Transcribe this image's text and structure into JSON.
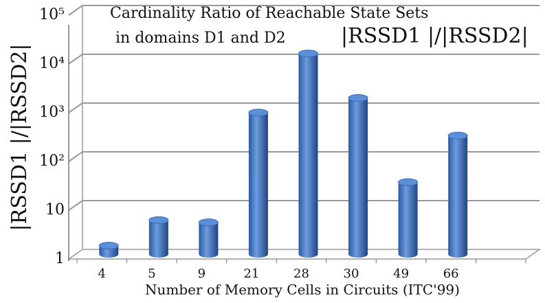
{
  "chart_data": {
    "type": "bar3d",
    "title": [
      "Cardinality Ratio of Reachable State Sets",
      "in domains D1 and D2"
    ],
    "title_formula": "|RSSD1 |/|RSSD2|",
    "ylabel": "|RSSD1 |/|RSSD2|",
    "xlabel": "Number of Memory Cells in Circuits (ITC'99)",
    "categories": [
      "4",
      "5",
      "9",
      "21",
      "28",
      "30",
      "49",
      "66"
    ],
    "values": [
      1.5,
      5,
      4.5,
      800,
      13000,
      1600,
      30,
      270
    ],
    "color": "#4a7cc4",
    "log_scale": true,
    "grid": true,
    "ylim": [
      1,
      100000
    ],
    "yticks": [
      1,
      10,
      {
        "value": 100,
        "label": "10²"
      },
      {
        "value": 1000,
        "label": "10³"
      },
      {
        "value": 10000,
        "label": "10⁴"
      },
      {
        "value": 100000,
        "label": "10⁵"
      }
    ]
  }
}
